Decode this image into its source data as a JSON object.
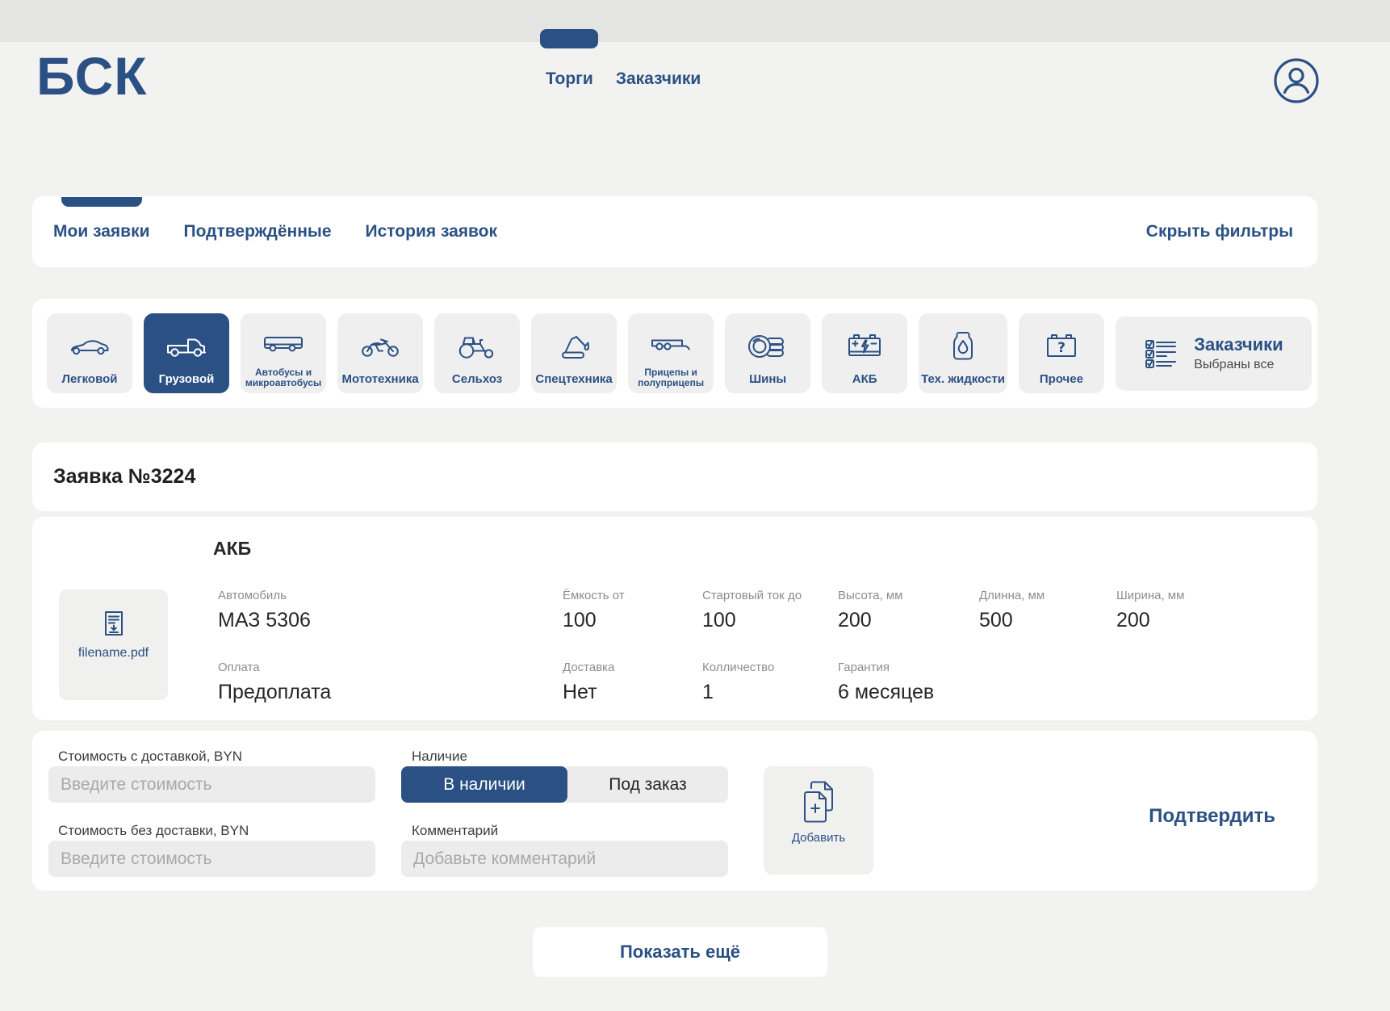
{
  "colors": {
    "brand": "#2B5184",
    "page_bg": "#F2F2F0",
    "top_strip": "#E4E4E2",
    "card_bg": "#FFFFFF",
    "tile_bg": "#EFEFEF",
    "input_bg": "#ECECEC",
    "label_gray": "#8D8D8D",
    "value_dark": "#262626",
    "placeholder_gray": "#A9A9A9"
  },
  "header": {
    "logo": "БСК",
    "nav": [
      {
        "label": "Торги",
        "active": true
      },
      {
        "label": "Заказчики",
        "active": false
      }
    ],
    "profile_icon": "user-icon"
  },
  "filters": {
    "tabs": [
      {
        "label": "Мои заявки",
        "active": true
      },
      {
        "label": "Подтверждённые",
        "active": false
      },
      {
        "label": "История заявок",
        "active": false
      }
    ],
    "hide_filters_label": "Скрыть фильтры"
  },
  "categories": {
    "items": [
      {
        "label": "Легковой",
        "icon": "car-icon",
        "selected": false
      },
      {
        "label": "Грузовой",
        "icon": "truck-icon",
        "selected": true
      },
      {
        "label": "Автобусы и микроавтобусы",
        "icon": "bus-icon",
        "selected": false
      },
      {
        "label": "Мототехника",
        "icon": "motorcycle-icon",
        "selected": false
      },
      {
        "label": "Сельхоз",
        "icon": "tractor-icon",
        "selected": false
      },
      {
        "label": "Спецтехника",
        "icon": "excavator-icon",
        "selected": false
      },
      {
        "label": "Прицепы и полуприцепы",
        "icon": "trailer-icon",
        "selected": false
      },
      {
        "label": "Шины",
        "icon": "tire-icon",
        "selected": false
      },
      {
        "label": "АКБ",
        "icon": "battery-icon",
        "selected": false
      },
      {
        "label": "Тех. жидкости",
        "icon": "fluid-icon",
        "selected": false
      },
      {
        "label": "Прочее",
        "icon": "box-question-icon",
        "selected": false
      }
    ],
    "customers_panel": {
      "icon": "checklist-icon",
      "title": "Заказчики",
      "subtitle": "Выбраны все"
    }
  },
  "request": {
    "title": "Заявка №3224"
  },
  "details": {
    "section_title": "АКБ",
    "attachment": {
      "icon": "document-icon",
      "filename": "filename.pdf"
    },
    "fields": [
      {
        "label": "Автомобиль",
        "value": "МАЗ 5306"
      },
      {
        "label": "Ёмкость от",
        "value": "100"
      },
      {
        "label": "Стартовый ток до",
        "value": "100"
      },
      {
        "label": "Высота, мм",
        "value": "200"
      },
      {
        "label": "Длинна, мм",
        "value": "500"
      },
      {
        "label": "Ширина, мм",
        "value": "200"
      },
      {
        "label": "Оплата",
        "value": "Предоплата"
      },
      {
        "label": "Доставка",
        "value": "Нет"
      },
      {
        "label": "Колличество",
        "value": "1"
      },
      {
        "label": "Гарантия",
        "value": "6 месяцев"
      }
    ]
  },
  "offer_form": {
    "price_with_delivery": {
      "label": "Стоимость с доставкой, BYN",
      "placeholder": "Введите стоимость",
      "value": ""
    },
    "price_without_delivery": {
      "label": "Стоимость без доставки, BYN",
      "placeholder": "Введите стоимость",
      "value": ""
    },
    "availability": {
      "label": "Наличие",
      "options": [
        {
          "label": "В наличии",
          "selected": true
        },
        {
          "label": "Под заказ",
          "selected": false
        }
      ]
    },
    "comment": {
      "label": "Комментарий",
      "placeholder": "Добавьте комментарий",
      "value": ""
    },
    "add_button": {
      "label": "Добавить",
      "icon": "add-copy-icon"
    },
    "confirm_label": "Подтвердить"
  },
  "show_more_label": "Показать ещё"
}
